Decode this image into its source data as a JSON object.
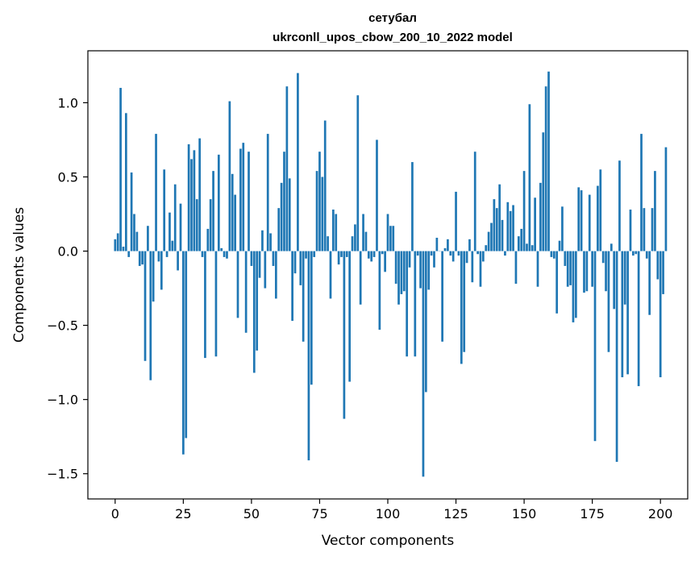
{
  "chart_data": {
    "type": "bar",
    "title": "сетубал",
    "subtitle": "ukrconll_upos_cbow_200_10_2022 model",
    "xlabel": "Vector components",
    "ylabel": "Components values",
    "xlim": [
      -10,
      210
    ],
    "ylim": [
      -1.67,
      1.35
    ],
    "xticks": [
      0,
      25,
      50,
      75,
      100,
      125,
      150,
      175,
      200
    ],
    "xtick_labels": [
      "0",
      "25",
      "50",
      "75",
      "100",
      "125",
      "150",
      "175",
      "200"
    ],
    "yticks": [
      -1.5,
      -1.0,
      -0.5,
      0.0,
      0.5,
      1.0
    ],
    "ytick_labels": [
      "−1.5",
      "−1.0",
      "−0.5",
      "0.0",
      "0.5",
      "1.0"
    ],
    "grid": false,
    "color": "#1f77b4",
    "values": [
      0.08,
      0.12,
      1.1,
      0.03,
      0.93,
      -0.04,
      0.53,
      0.25,
      0.13,
      -0.1,
      -0.09,
      -0.74,
      0.17,
      -0.87,
      -0.34,
      0.79,
      -0.07,
      -0.26,
      0.55,
      -0.04,
      0.26,
      0.07,
      0.45,
      -0.13,
      0.32,
      -1.37,
      -1.26,
      0.72,
      0.62,
      0.68,
      0.35,
      0.76,
      -0.04,
      -0.72,
      0.15,
      0.35,
      0.54,
      -0.71,
      0.65,
      0.02,
      -0.04,
      -0.05,
      1.01,
      0.52,
      0.38,
      -0.45,
      0.69,
      0.73,
      -0.55,
      0.67,
      -0.1,
      -0.82,
      -0.67,
      -0.18,
      0.14,
      -0.25,
      0.79,
      0.12,
      -0.1,
      -0.32,
      0.29,
      0.46,
      0.67,
      1.11,
      0.49,
      -0.47,
      -0.15,
      1.2,
      -0.23,
      -0.61,
      -0.05,
      -1.41,
      -0.9,
      -0.04,
      0.54,
      0.67,
      0.5,
      0.88,
      0.1,
      -0.32,
      0.28,
      0.25,
      -0.09,
      -0.04,
      -1.13,
      -0.04,
      -0.88,
      0.1,
      0.18,
      1.05,
      -0.36,
      0.25,
      0.13,
      -0.05,
      -0.07,
      -0.04,
      0.75,
      -0.53,
      -0.02,
      -0.14,
      0.25,
      0.17,
      0.17,
      -0.22,
      -0.36,
      -0.29,
      -0.27,
      -0.71,
      -0.11,
      0.6,
      -0.71,
      -0.03,
      -0.25,
      -1.52,
      -0.95,
      -0.26,
      -0.03,
      -0.11,
      0.09,
      0.0,
      -0.61,
      0.02,
      0.08,
      -0.03,
      -0.07,
      0.4,
      -0.03,
      -0.76,
      -0.68,
      -0.08,
      0.08,
      -0.21,
      0.67,
      -0.02,
      -0.24,
      -0.07,
      0.04,
      0.13,
      0.19,
      0.35,
      0.29,
      0.45,
      0.21,
      -0.03,
      0.33,
      0.27,
      0.31,
      -0.22,
      0.1,
      0.15,
      0.54,
      0.05,
      0.99,
      0.04,
      0.36,
      -0.24,
      0.46,
      0.8,
      1.11,
      1.21,
      -0.04,
      -0.05,
      -0.42,
      0.07,
      0.3,
      -0.1,
      -0.24,
      -0.23,
      -0.48,
      -0.45,
      0.43,
      0.41,
      -0.28,
      -0.27,
      0.38,
      -0.24,
      -1.28,
      0.44,
      0.55,
      -0.08,
      -0.27,
      -0.68,
      0.05,
      -0.39,
      -1.42,
      0.61,
      -0.85,
      -0.36,
      -0.83,
      0.28,
      -0.03,
      -0.02,
      -0.91,
      0.79,
      0.29,
      -0.05,
      -0.43,
      0.29,
      0.54,
      -0.19,
      -0.85,
      -0.29,
      0.7
    ]
  }
}
